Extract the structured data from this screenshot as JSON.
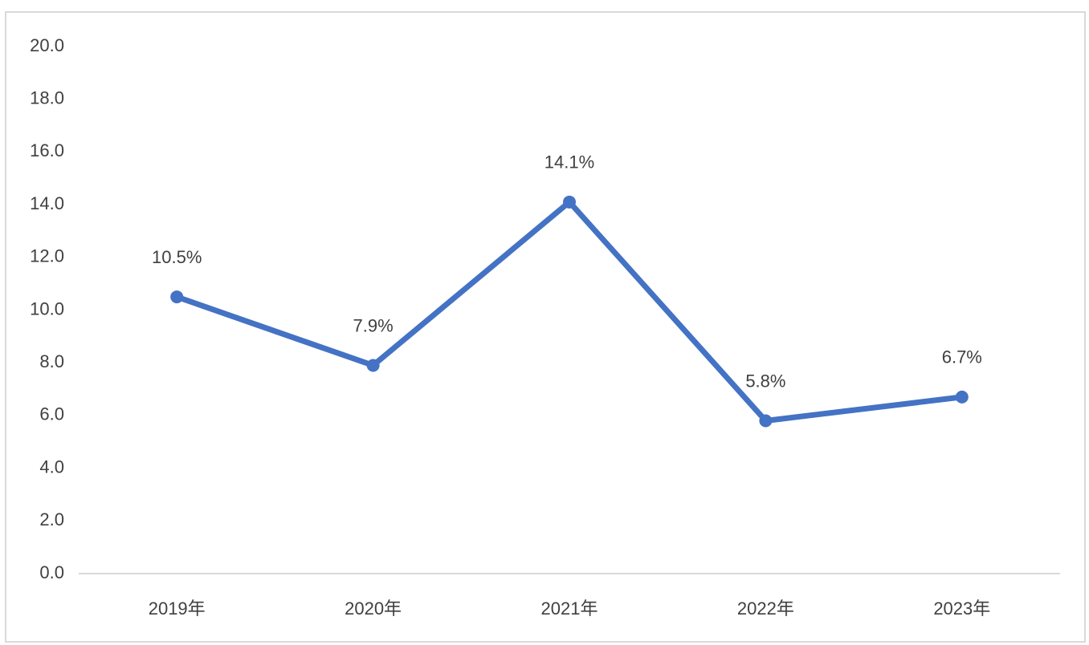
{
  "chart_data": {
    "type": "line",
    "categories": [
      "2019年",
      "2020年",
      "2021年",
      "2022年",
      "2023年"
    ],
    "series": [
      {
        "color": "#4472c4",
        "values": [
          10.5,
          7.9,
          14.1,
          5.8,
          6.7
        ],
        "value_labels": [
          "10.5%",
          "7.9%",
          "14.1%",
          "5.8%",
          "6.7%"
        ]
      }
    ],
    "ylim": [
      0,
      20
    ],
    "yticks": [
      {
        "value": 0,
        "label": "0.0"
      },
      {
        "value": 2,
        "label": "2.0"
      },
      {
        "value": 4,
        "label": "4.0"
      },
      {
        "value": 6,
        "label": "6.0"
      },
      {
        "value": 8,
        "label": "8.0"
      },
      {
        "value": 10,
        "label": "10.0"
      },
      {
        "value": 12,
        "label": "12.0"
      },
      {
        "value": 14,
        "label": "14.0"
      },
      {
        "value": 16,
        "label": "16.0"
      },
      {
        "value": 18,
        "label": "18.0"
      },
      {
        "value": 20,
        "label": "20.0"
      }
    ],
    "grid": false
  }
}
